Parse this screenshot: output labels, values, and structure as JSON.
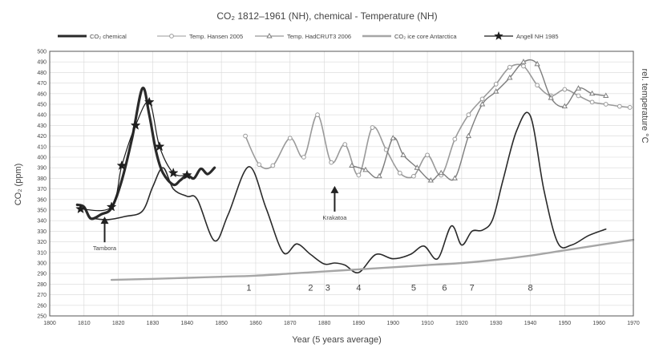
{
  "chart_data": {
    "type": "line",
    "title": "CO₂ 1812–1961 (NH), chemical - Temperature (NH)",
    "xlabel": "Year (5 years average)",
    "ylabel": "CO₂ (ppm)",
    "y2label": "rel. temperature °C",
    "xlim": [
      1800,
      1970
    ],
    "ylim": [
      250,
      500
    ],
    "xticks": [
      "1800",
      "1810",
      "1820",
      "1830",
      "1840",
      "1850",
      "1860",
      "1870",
      "1880",
      "1890",
      "1900",
      "1910",
      "1920",
      "1930",
      "1940",
      "1950",
      "1960",
      "1970"
    ],
    "yticks": [
      "250",
      "260",
      "270",
      "280",
      "290",
      "300",
      "310",
      "320",
      "330",
      "340",
      "350",
      "360",
      "370",
      "380",
      "390",
      "400",
      "410",
      "420",
      "430",
      "440",
      "450",
      "460",
      "470",
      "480",
      "490",
      "500"
    ],
    "grid": true,
    "legend_position": "top",
    "series": [
      {
        "name": "CO₂ chemical",
        "color": "#2a2a2a",
        "marker": "none",
        "x": [
          1808,
          1810,
          1812,
          1815,
          1818,
          1821,
          1824,
          1827,
          1829,
          1831,
          1833,
          1836,
          1838,
          1840,
          1842,
          1844,
          1846,
          1848
        ],
        "y": [
          355,
          353,
          342,
          346,
          352,
          378,
          418,
          465,
          440,
          405,
          385,
          374,
          378,
          383,
          380,
          389,
          384,
          390
        ]
      },
      {
        "name": "CO₂ chemical",
        "color": "#2a2a2a",
        "marker": "none",
        "x": [
          1813,
          1817,
          1822,
          1827,
          1830,
          1833,
          1836,
          1840,
          1843,
          1848,
          1852,
          1858,
          1863,
          1868,
          1872,
          1876,
          1880,
          1883,
          1886,
          1890,
          1895,
          1900,
          1905,
          1909,
          1913,
          1917,
          1920,
          1923,
          1926,
          1929,
          1932,
          1936,
          1940,
          1944,
          1948,
          1952,
          1957,
          1962
        ],
        "y": [
          342,
          341,
          344,
          349,
          372,
          390,
          370,
          363,
          360,
          321,
          346,
          391,
          352,
          310,
          318,
          308,
          299,
          300,
          298,
          291,
          308,
          304,
          308,
          316,
          304,
          335,
          317,
          330,
          331,
          341,
          378,
          425,
          439,
          368,
          319,
          317,
          326,
          332
        ]
      },
      {
        "name": "Temp. Hansen 2005",
        "color": "#9a9a9a",
        "marker": "circle",
        "x": [
          1857,
          1861,
          1865,
          1870,
          1874,
          1878,
          1882,
          1886,
          1890,
          1894,
          1898,
          1902,
          1906,
          1910,
          1914,
          1918,
          1922,
          1926,
          1930,
          1934,
          1938,
          1942,
          1946,
          1950,
          1954,
          1958,
          1962,
          1966,
          1969
        ],
        "y": [
          420,
          393,
          392,
          418,
          400,
          440,
          395,
          412,
          383,
          428,
          407,
          385,
          382,
          402,
          383,
          417,
          440,
          455,
          469,
          485,
          486,
          468,
          458,
          464,
          458,
          452,
          450,
          448,
          447
        ]
      },
      {
        "name": "Temp. HadCRUT3 2006",
        "color": "#7e7e7e",
        "marker": "triangle",
        "x": [
          1888,
          1892,
          1896,
          1900,
          1903,
          1907,
          1911,
          1914,
          1918,
          1922,
          1926,
          1930,
          1934,
          1938,
          1942,
          1946,
          1950,
          1954,
          1958,
          1962
        ],
        "y": [
          392,
          388,
          382,
          418,
          402,
          390,
          378,
          385,
          380,
          420,
          450,
          462,
          475,
          490,
          488,
          456,
          448,
          465,
          460,
          458
        ]
      },
      {
        "name": "CO₂ ice core Antarctica",
        "color": "#a6a6a6",
        "marker": "none",
        "x": [
          1818,
          1830,
          1840,
          1850,
          1860,
          1870,
          1880,
          1890,
          1900,
          1910,
          1920,
          1930,
          1940,
          1950,
          1960,
          1970
        ],
        "y": [
          284,
          285,
          286,
          287,
          288,
          290,
          292,
          294,
          296,
          298,
          300,
          303,
          307,
          312,
          317,
          322
        ]
      },
      {
        "name": "Angell NH 1985",
        "color": "#1e1e1e",
        "marker": "star",
        "x": [
          1809,
          1818,
          1821,
          1825,
          1829,
          1832,
          1836,
          1840
        ],
        "y": [
          351,
          353,
          392,
          430,
          452,
          410,
          385,
          383
        ]
      }
    ],
    "legend": [
      {
        "label": "CO₂ chemical",
        "style": "line-bold"
      },
      {
        "label": "Temp. Hansen 2005",
        "style": "circle"
      },
      {
        "label": "Temp. HadCRUT3 2006",
        "style": "triangle"
      },
      {
        "label": "CO₂ ice core Antarctica",
        "style": "line-grey"
      },
      {
        "label": "Angell NH 1985",
        "style": "star"
      }
    ],
    "annotations": [
      {
        "text": "Tambora",
        "x": 1816,
        "y": 312
      },
      {
        "text": "Krakatoa",
        "x": 1883,
        "y": 341
      },
      {
        "text": "1",
        "x": 1858,
        "y": 274
      },
      {
        "text": "2",
        "x": 1876,
        "y": 274
      },
      {
        "text": "3",
        "x": 1881,
        "y": 274
      },
      {
        "text": "4",
        "x": 1890,
        "y": 274
      },
      {
        "text": "5",
        "x": 1906,
        "y": 274
      },
      {
        "text": "6",
        "x": 1915,
        "y": 274
      },
      {
        "text": "7",
        "x": 1923,
        "y": 274
      },
      {
        "text": "8",
        "x": 1940,
        "y": 274
      }
    ]
  }
}
